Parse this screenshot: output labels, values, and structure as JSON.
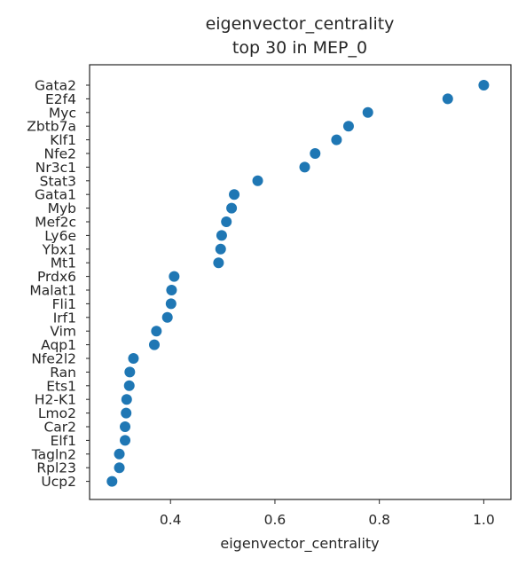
{
  "chart_data": {
    "type": "scatter",
    "title": "eigenvector_centrality",
    "subtitle": "top 30 in MEP_0",
    "xlabel": "eigenvector_centrality",
    "ylabel": "",
    "xlim": [
      0.245,
      1.052
    ],
    "xticks": [
      0.4,
      0.6,
      0.8,
      1.0
    ],
    "xtick_labels": [
      "0.4",
      "0.6",
      "0.8",
      "1.0"
    ],
    "grid": false,
    "marker_color": "#1f77b4",
    "categories": [
      "Gata2",
      "E2f4",
      "Myc",
      "Zbtb7a",
      "Klf1",
      "Nfe2",
      "Nr3c1",
      "Stat3",
      "Gata1",
      "Myb",
      "Mef2c",
      "Ly6e",
      "Ybx1",
      "Mt1",
      "Prdx6",
      "Malat1",
      "Fli1",
      "Irf1",
      "Vim",
      "Aqp1",
      "Nfe2l2",
      "Ran",
      "Ets1",
      "H2-K1",
      "Lmo2",
      "Car2",
      "Elf1",
      "Tagln2",
      "Rpl23",
      "Ucp2"
    ],
    "values": [
      1.0,
      0.931,
      0.778,
      0.741,
      0.718,
      0.677,
      0.657,
      0.567,
      0.522,
      0.517,
      0.507,
      0.498,
      0.496,
      0.492,
      0.407,
      0.402,
      0.401,
      0.394,
      0.373,
      0.369,
      0.329,
      0.322,
      0.321,
      0.316,
      0.315,
      0.313,
      0.313,
      0.302,
      0.302,
      0.288
    ]
  }
}
